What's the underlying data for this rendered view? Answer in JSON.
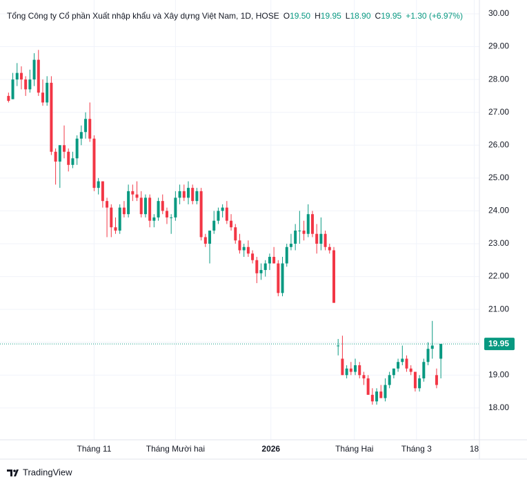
{
  "chart_data": {
    "type": "candlestick",
    "title": "Tổng Công ty Cổ phần Xuất nhập khẩu và Xây dựng Việt Nam, 1D, HOSE",
    "legend": {
      "o_label": "O",
      "open": "19.50",
      "h_label": "H",
      "high": "19.95",
      "l_label": "L",
      "low": "18.90",
      "c_label": "C",
      "close": "19.95",
      "change": "+1.30 (+6.97%)"
    },
    "up_color": "#089981",
    "down_color": "#f23645",
    "open": [
      27.5,
      27.4,
      28.0,
      28.2,
      28.0,
      27.7,
      28.0,
      28.6,
      27.6,
      27.3,
      27.9,
      25.8,
      25.5,
      26.0,
      25.8,
      25.4,
      25.6,
      26.2,
      26.4,
      26.8,
      26.2,
      24.7,
      24.9,
      24.3,
      24.1,
      23.5,
      23.4,
      24.1,
      23.9,
      24.6,
      24.5,
      24.4,
      23.9,
      24.4,
      23.7,
      23.8,
      24.3,
      24.0,
      23.8,
      23.8,
      24.4,
      24.6,
      24.4,
      24.7,
      24.3,
      24.6,
      23.2,
      23.0,
      23.4,
      23.7,
      24.0,
      24.1,
      23.7,
      23.5,
      23.1,
      22.8,
      22.9,
      22.7,
      22.5,
      22.1,
      22.2,
      22.4,
      22.6,
      22.4,
      21.5,
      22.4,
      22.9,
      23.0,
      23.4,
      23.4,
      23.3,
      23.9,
      23.3,
      23.0,
      23.3,
      22.9,
      22.8,
      19.9,
      19.5,
      19.0,
      19.2,
      19.1,
      19.3,
      19.0,
      18.9,
      18.4,
      18.2,
      18.5,
      18.3,
      18.7,
      19.0,
      19.2,
      19.4,
      19.5,
      19.2,
      19.1,
      18.6,
      18.9,
      19.4,
      19.8,
      19.0,
      19.5
    ],
    "high": [
      27.6,
      28.2,
      28.5,
      28.4,
      28.1,
      28.3,
      28.8,
      28.9,
      28.0,
      28.1,
      28.1,
      25.9,
      26.0,
      26.6,
      25.9,
      25.8,
      26.3,
      26.6,
      27.0,
      27.3,
      26.3,
      25.0,
      24.9,
      24.4,
      24.2,
      23.8,
      24.2,
      24.3,
      24.8,
      24.8,
      24.9,
      24.6,
      24.5,
      24.5,
      23.9,
      24.4,
      24.5,
      24.1,
      23.9,
      24.6,
      24.8,
      24.8,
      24.9,
      24.8,
      24.7,
      24.7,
      23.3,
      23.4,
      24.0,
      24.1,
      24.2,
      24.3,
      23.9,
      23.6,
      23.3,
      23.0,
      23.1,
      22.8,
      22.6,
      22.4,
      22.5,
      22.7,
      22.9,
      22.5,
      22.6,
      23.0,
      23.3,
      23.6,
      24.0,
      23.7,
      24.2,
      24.0,
      23.6,
      23.8,
      23.4,
      23.0,
      22.9,
      20.1,
      20.2,
      19.3,
      19.4,
      19.5,
      19.4,
      19.1,
      19.0,
      18.6,
      18.6,
      18.7,
      18.9,
      19.1,
      19.2,
      19.5,
      19.9,
      19.6,
      19.3,
      19.1,
      19.0,
      19.5,
      20.0,
      20.65,
      19.2,
      19.95
    ],
    "low": [
      27.3,
      27.4,
      27.8,
      27.7,
      27.5,
      27.6,
      27.8,
      27.5,
      27.2,
      27.2,
      25.7,
      24.8,
      24.7,
      25.6,
      25.2,
      25.3,
      25.4,
      26.0,
      26.2,
      26.1,
      24.6,
      24.5,
      24.1,
      23.2,
      23.2,
      23.3,
      23.3,
      23.8,
      23.8,
      24.3,
      24.3,
      23.8,
      23.8,
      23.5,
      23.5,
      23.7,
      23.9,
      23.6,
      23.3,
      23.7,
      24.2,
      24.3,
      24.2,
      24.2,
      24.2,
      23.1,
      22.9,
      22.4,
      23.3,
      23.6,
      23.8,
      23.6,
      23.4,
      23.0,
      22.7,
      22.6,
      22.6,
      22.4,
      21.8,
      21.9,
      22.0,
      22.2,
      22.4,
      21.4,
      21.4,
      22.3,
      22.8,
      22.8,
      23.0,
      23.1,
      23.2,
      23.2,
      22.7,
      22.8,
      22.8,
      22.7,
      21.2,
      19.6,
      19.0,
      18.9,
      19.0,
      19.0,
      18.9,
      18.7,
      18.4,
      18.1,
      18.1,
      18.3,
      18.2,
      18.6,
      18.9,
      19.1,
      19.3,
      19.1,
      19.0,
      18.5,
      18.5,
      18.8,
      19.3,
      19.5,
      18.6,
      18.9
    ],
    "close": [
      27.35,
      28.0,
      28.2,
      28.0,
      27.7,
      28.0,
      28.6,
      27.6,
      27.3,
      27.9,
      25.8,
      25.5,
      26.0,
      25.8,
      25.4,
      25.6,
      26.2,
      26.4,
      26.8,
      26.2,
      24.7,
      24.9,
      24.3,
      24.1,
      23.5,
      23.4,
      24.1,
      23.9,
      24.6,
      24.5,
      24.4,
      23.9,
      24.4,
      23.7,
      23.8,
      24.3,
      24.0,
      23.8,
      23.8,
      24.4,
      24.6,
      24.4,
      24.7,
      24.3,
      24.6,
      23.2,
      23.0,
      23.4,
      23.7,
      24.0,
      24.1,
      23.7,
      23.5,
      23.1,
      22.8,
      22.9,
      22.7,
      22.5,
      22.1,
      22.2,
      22.4,
      22.6,
      22.4,
      21.5,
      22.4,
      22.9,
      23.0,
      23.4,
      23.4,
      23.3,
      23.9,
      23.3,
      23.0,
      23.3,
      22.9,
      22.8,
      21.2,
      19.9,
      19.0,
      19.2,
      19.1,
      19.3,
      19.0,
      18.9,
      18.4,
      18.2,
      18.5,
      18.3,
      18.7,
      19.0,
      19.2,
      19.4,
      19.5,
      19.2,
      19.1,
      18.6,
      18.9,
      19.4,
      19.8,
      19.9,
      18.7,
      19.95
    ],
    "last_price": 19.95,
    "ylim": [
      17.03,
      30.42
    ],
    "yticks": [
      {
        "value": 18,
        "label": "18.00"
      },
      {
        "value": 19,
        "label": "19.00"
      },
      {
        "value": 20,
        "label": "20.00"
      },
      {
        "value": 21,
        "label": "21.00"
      },
      {
        "value": 22,
        "label": "22.00"
      },
      {
        "value": 23,
        "label": "23.00"
      },
      {
        "value": 24,
        "label": "24.00"
      },
      {
        "value": 25,
        "label": "25.00"
      },
      {
        "value": 26,
        "label": "26.00"
      },
      {
        "value": 27,
        "label": "27.00"
      },
      {
        "value": 28,
        "label": "28.00"
      },
      {
        "value": 29,
        "label": "29.00"
      },
      {
        "value": 30,
        "label": "30.00"
      }
    ],
    "xlim": [
      -0.7,
      110
    ],
    "xticks": [
      {
        "value": 20,
        "label": "Tháng 11"
      },
      {
        "value": 39,
        "label": "Tháng Mười hai"
      },
      {
        "value": 61.3,
        "label": "2026"
      },
      {
        "value": 80.8,
        "label": "Tháng Hai"
      },
      {
        "value": 95.3,
        "label": "Tháng 3"
      },
      {
        "value": 108.8,
        "label": "18"
      }
    ],
    "grid": true,
    "brand": "TradingView"
  }
}
